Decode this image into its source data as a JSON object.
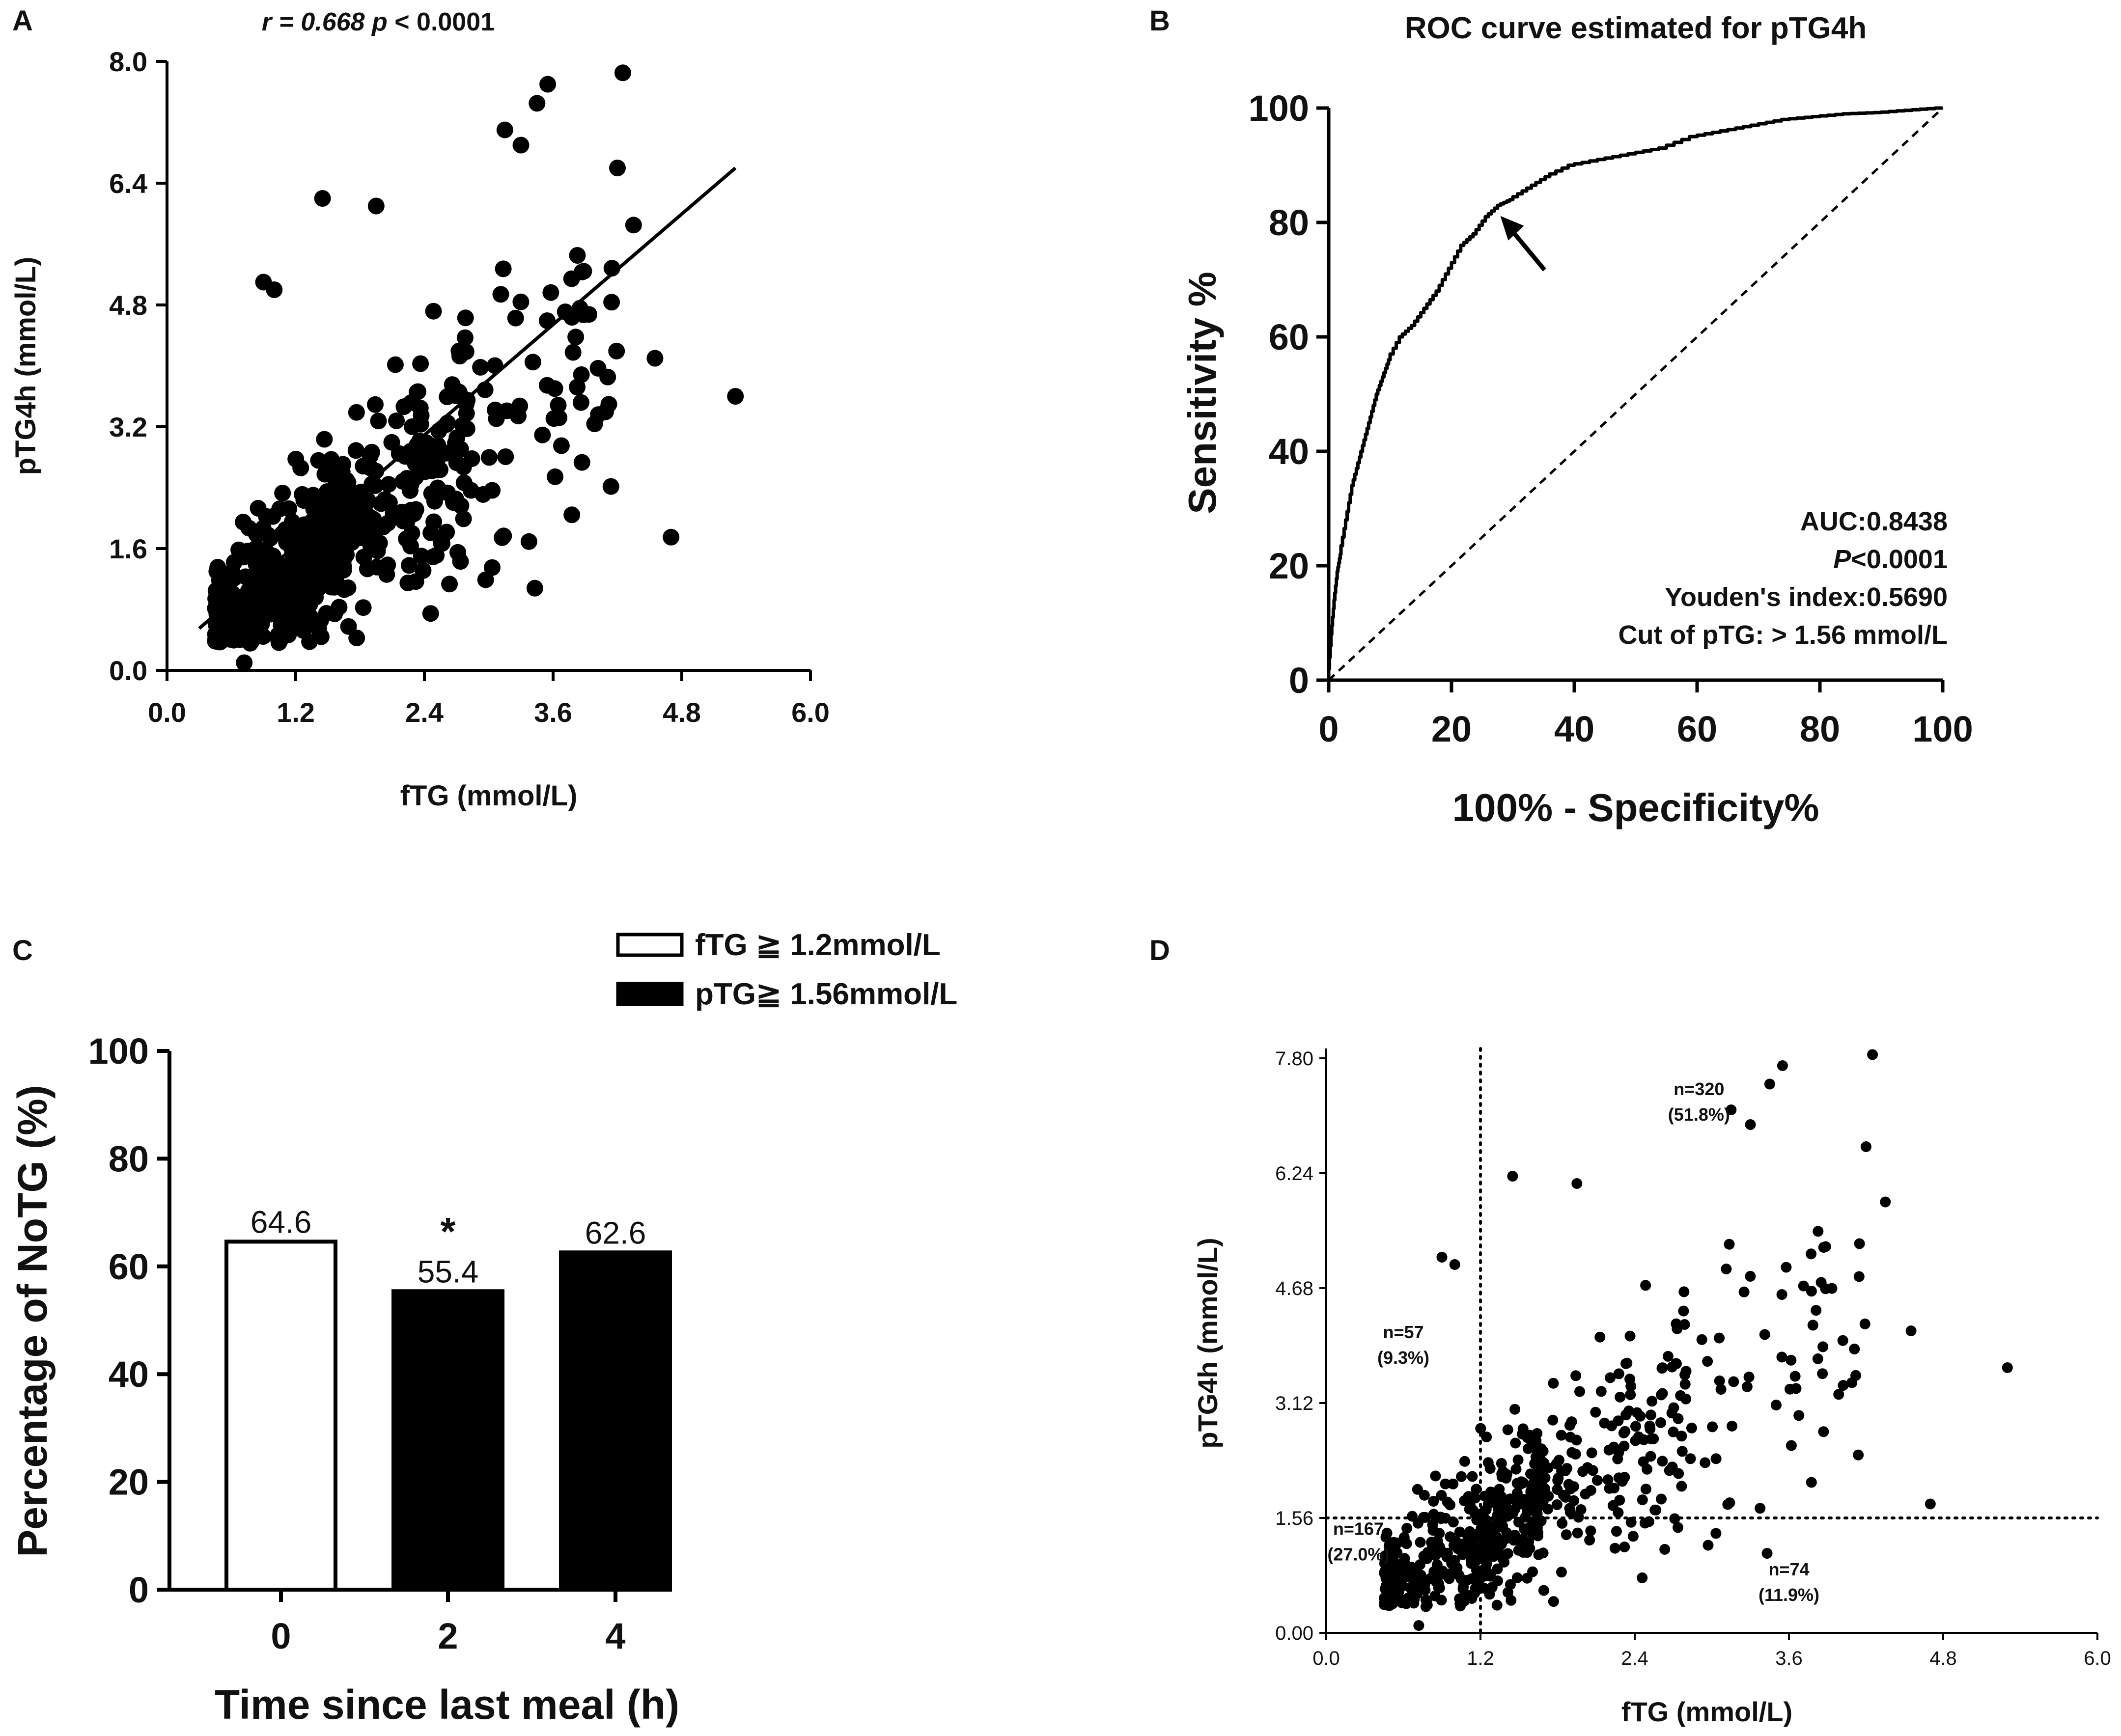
{
  "panels": {
    "A": {
      "label": "A"
    },
    "B": {
      "label": "B"
    },
    "C": {
      "label": "C"
    },
    "D": {
      "label": "D"
    }
  },
  "chart_data": [
    {
      "id": "A",
      "type": "scatter",
      "title": "r = 0.668  p < 0.0001",
      "title_parts": {
        "r": "r = 0.668",
        "p_label": "p",
        "p_rest": "< 0.0001"
      },
      "xlabel": "fTG (mmol/L)",
      "ylabel": "pTG4h (mmol/L)",
      "xlim": [
        0,
        6.0
      ],
      "ylim": [
        0,
        8.0
      ],
      "xticks": [
        "0.0",
        "1.2",
        "2.4",
        "3.6",
        "4.8",
        "6.0"
      ],
      "yticks": [
        "0.0",
        "1.6",
        "3.2",
        "4.8",
        "6.4",
        "8.0"
      ],
      "regression_line": {
        "x": [
          0.3,
          5.3
        ],
        "y": [
          0.55,
          6.6
        ]
      },
      "n_points_approx": 618
    },
    {
      "id": "B",
      "type": "line",
      "title": "ROC curve estimated for pTG4h",
      "xlabel": "100% - Specificity%",
      "ylabel": "Sensitivity %",
      "xlim": [
        0,
        100
      ],
      "ylim": [
        0,
        100
      ],
      "xticks": [
        "0",
        "20",
        "40",
        "60",
        "80",
        "100"
      ],
      "yticks": [
        "0",
        "20",
        "40",
        "60",
        "80",
        "100"
      ],
      "roc": {
        "x": [
          0,
          0.5,
          1,
          1.5,
          2,
          3,
          4,
          5,
          6,
          7,
          8,
          9,
          10,
          12,
          14,
          16,
          18,
          20,
          22,
          24,
          26,
          28,
          30,
          33,
          36,
          40,
          45,
          50,
          55,
          60,
          65,
          70,
          75,
          80,
          85,
          90,
          95,
          100
        ],
        "y": [
          0,
          8,
          14,
          19,
          22,
          28,
          34,
          38,
          42,
          46,
          50,
          53,
          56,
          60,
          62,
          65,
          68,
          72,
          76,
          78,
          81,
          83,
          84,
          86,
          88,
          90,
          91,
          92,
          93,
          95,
          96,
          97,
          98,
          98.5,
          99,
          99.2,
          99.6,
          100
        ]
      },
      "reference_line": {
        "x": [
          0,
          100
        ],
        "y": [
          0,
          100
        ]
      },
      "cutoff_arrow": {
        "x": 27,
        "y": 82
      },
      "annotations": {
        "auc": "AUC:0.8438",
        "p_label": "P",
        "p_rest": "<0.0001",
        "youden": "Youden's index:0.5690",
        "cut": "Cut of pTG: > 1.56 mmol/L"
      }
    },
    {
      "id": "C",
      "type": "bar",
      "xlabel": "Time since last meal (h)",
      "ylabel": "Percentage of NoTG (%)",
      "categories": [
        "0",
        "2",
        "4"
      ],
      "values": [
        64.6,
        55.4,
        62.6
      ],
      "value_labels": [
        "64.6",
        "55.4",
        "62.6"
      ],
      "series_of_bar": [
        "fTG",
        "pTG",
        "pTG"
      ],
      "significance": [
        "",
        "*",
        ""
      ],
      "ylim": [
        0,
        100
      ],
      "yticks": [
        "0",
        "20",
        "40",
        "60",
        "80",
        "100"
      ],
      "legend": [
        {
          "label": "fTG ≧ 1.2mmol/L",
          "fill": "#ffffff"
        },
        {
          "label": "pTG≧ 1.56mmol/L",
          "fill": "#000000"
        }
      ]
    },
    {
      "id": "D",
      "type": "scatter",
      "xlabel": "fTG (mmol/L)",
      "ylabel": "pTG4h (mmol/L)",
      "xlim": [
        0,
        6.0
      ],
      "ylim": [
        0,
        7.8
      ],
      "xticks": [
        "0.0",
        "1.2",
        "2.4",
        "3.6",
        "4.8",
        "6.0"
      ],
      "yticks": [
        "0.00",
        "1.56",
        "3.12",
        "4.68",
        "6.24",
        "7.80"
      ],
      "cutoff_x": 1.2,
      "cutoff_y": 1.56,
      "quadrants": [
        {
          "n": "n=320",
          "pct": "(51.8%)",
          "x": 2.9,
          "y": 7.3
        },
        {
          "n": "n=57",
          "pct": "(9.3%)",
          "x": 0.6,
          "y": 4.0
        },
        {
          "n": "n=167",
          "pct": "(27.0%)",
          "x": 0.25,
          "y": 1.33
        },
        {
          "n": "n=74",
          "pct": "(11.9%)",
          "x": 3.6,
          "y": 0.78
        }
      ]
    }
  ]
}
